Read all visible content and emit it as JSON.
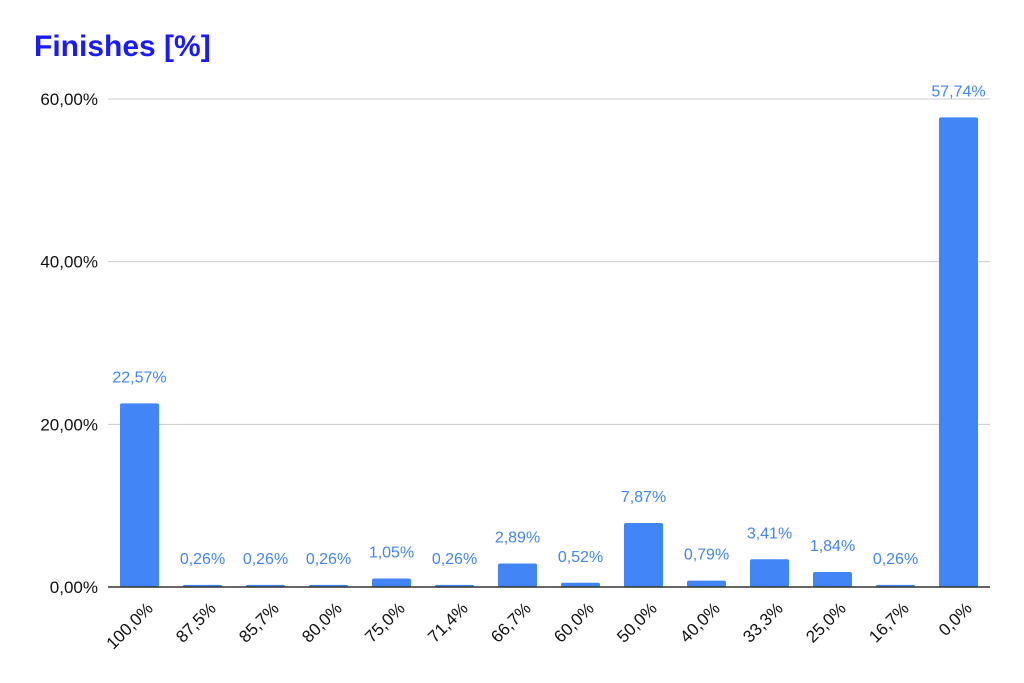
{
  "chart_data": {
    "type": "bar",
    "title": "Finishes [%]",
    "xlabel": "",
    "ylabel": "",
    "categories": [
      "100,0%",
      "87,5%",
      "85,7%",
      "80,0%",
      "75,0%",
      "71,4%",
      "66,7%",
      "60,0%",
      "50,0%",
      "40,0%",
      "33,3%",
      "25,0%",
      "16,7%",
      "0,0%"
    ],
    "values": [
      22.57,
      0.26,
      0.26,
      0.26,
      1.05,
      0.26,
      2.89,
      0.52,
      7.87,
      0.79,
      3.41,
      1.84,
      0.26,
      57.74
    ],
    "data_labels": [
      "22,57%",
      "0,26%",
      "0,26%",
      "0,26%",
      "1,05%",
      "0,26%",
      "2,89%",
      "0,52%",
      "7,87%",
      "0,79%",
      "3,41%",
      "1,84%",
      "0,26%",
      "57,74%"
    ],
    "yticks": [
      0,
      20,
      40,
      60
    ],
    "ytick_labels": [
      "0,00%",
      "20,00%",
      "40,00%",
      "60,00%"
    ],
    "ylim": [
      0,
      60
    ],
    "grid": true,
    "legend": "none",
    "colors": {
      "bar": "#4285f4",
      "label": "#4285f4",
      "title": "#1a1aff",
      "grid": "#cccccc",
      "axis": "#333333"
    }
  }
}
